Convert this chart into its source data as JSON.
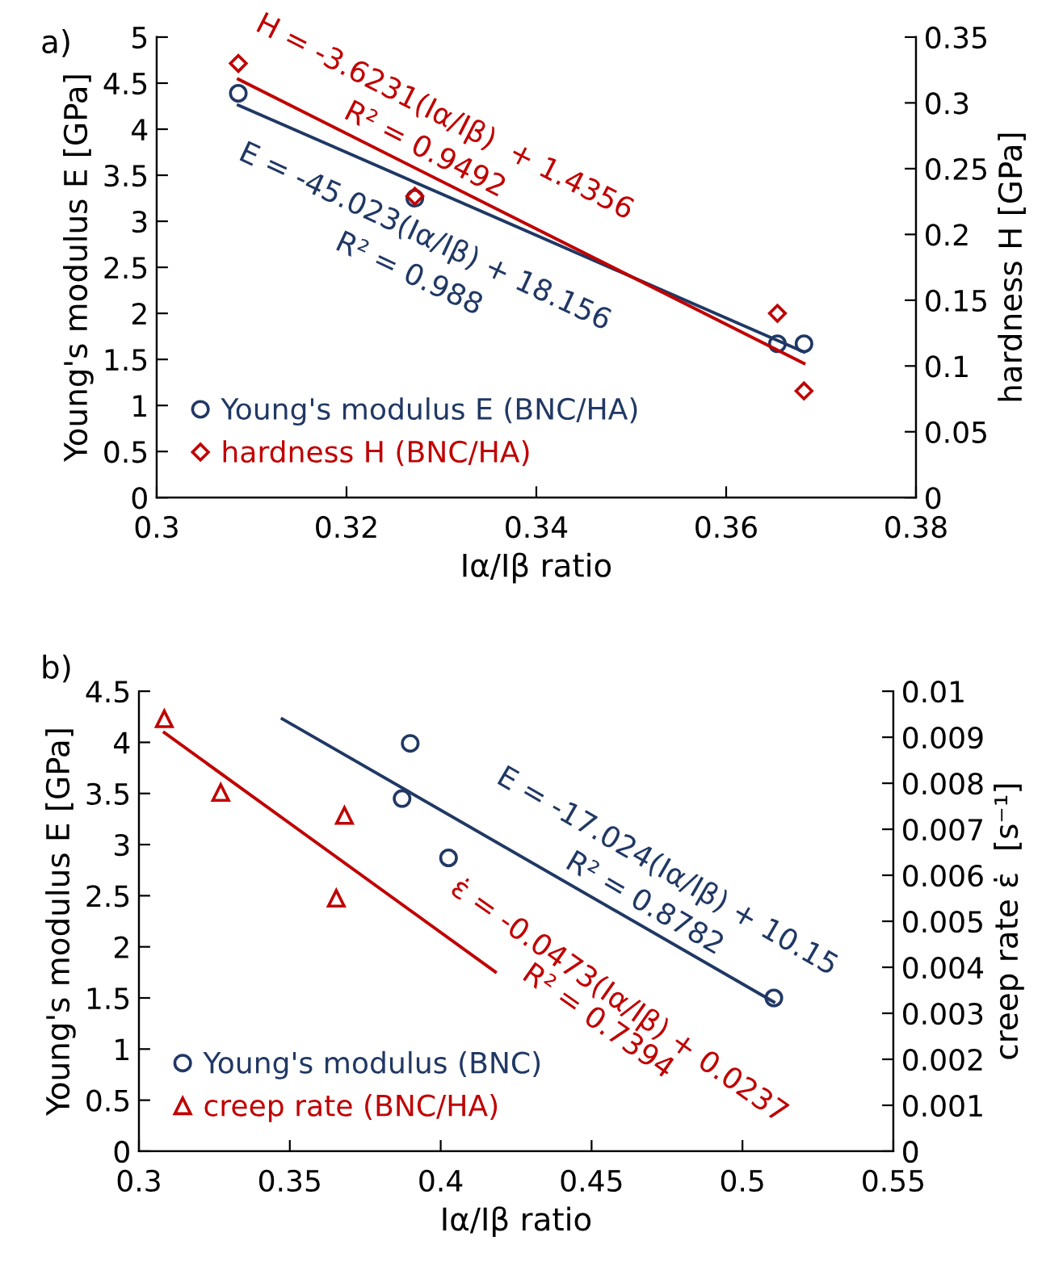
{
  "chart_data": [
    {
      "type": "scatter",
      "xlabel": "Iα/Iβ ratio",
      "ylabel": "Young's modulus E [GPa]",
      "y2label": "hardness H [GPa]",
      "xlim": [
        0.3,
        0.38
      ],
      "xticks": [
        0.3,
        0.32,
        0.34,
        0.36,
        0.38
      ],
      "ylim": [
        0,
        5
      ],
      "yticks": [
        0,
        0.5,
        1,
        1.5,
        2,
        2.5,
        3,
        3.5,
        4,
        4.5,
        5
      ],
      "y2lim": [
        0,
        0.35
      ],
      "y2ticks": [
        0,
        0.05,
        0.1,
        0.15,
        0.2,
        0.25,
        0.3,
        0.35
      ],
      "grid": false,
      "legend": "bottom left",
      "series": [
        {
          "name": "Young's modulus E (BNC/HA)",
          "marker": "circle",
          "color": "#203864",
          "x": [
            0.3086,
            0.3272,
            0.3654,
            0.3682
          ],
          "values": [
            4.39,
            3.25,
            1.67,
            1.67
          ]
        },
        {
          "name": "hardness H (BNC/HA)",
          "marker": "diamond",
          "color": "#c00000",
          "axis": "y2",
          "x": [
            0.3086,
            0.3272,
            0.3654,
            0.3682
          ],
          "values": [
            0.33,
            0.229,
            0.14,
            0.081
          ]
        },
        {
          "type": "line",
          "marker": "none",
          "line_style": "solid",
          "color": "#203864",
          "x": [
            0.3086,
            0.3682
          ],
          "values": [
            4.26,
            1.58
          ]
        },
        {
          "type": "line",
          "marker": "none",
          "line_style": "solid",
          "color": "#c00000",
          "axis": "y2",
          "x": [
            0.3086,
            0.3682
          ],
          "values": [
            0.318,
            0.102
          ]
        }
      ],
      "annotations": [
        "a)",
        "H = -3.6231(Iα/Iβ)  + 1.4356",
        "R² = 0.9492",
        "E = -45.023(Iα/Iβ) + 18.156",
        "R² = 0.988"
      ]
    },
    {
      "type": "scatter",
      "xlabel": "Iα/Iβ ratio",
      "ylabel": "Young's modulus E [GPa]",
      "y2label": "creep rate ε̇  [s⁻¹]",
      "xlim": [
        0.3,
        0.55
      ],
      "xticks": [
        0.3,
        0.35,
        0.4,
        0.45,
        0.5,
        0.55
      ],
      "ylim": [
        0,
        4.5
      ],
      "yticks": [
        0,
        0.5,
        1,
        1.5,
        2,
        2.5,
        3,
        3.5,
        4,
        4.5
      ],
      "y2lim": [
        0,
        0.01
      ],
      "y2ticks": [
        0,
        0.001,
        0.002,
        0.003,
        0.004,
        0.005,
        0.006,
        0.007,
        0.008,
        0.009,
        0.01
      ],
      "grid": false,
      "legend": "bottom left",
      "series": [
        {
          "name": "Young's modulus (BNC)",
          "marker": "circle",
          "color": "#203864",
          "x": [
            0.3899,
            0.3872,
            0.4026,
            0.5104
          ],
          "values": [
            3.99,
            3.45,
            2.87,
            1.5
          ]
        },
        {
          "name": "creep rate (BNC/HA)",
          "marker": "triangle",
          "color": "#c00000",
          "axis": "y2",
          "x": [
            0.3084,
            0.3271,
            0.3681,
            0.3654
          ],
          "values": [
            0.0094,
            0.0078,
            0.0073,
            0.0055
          ]
        },
        {
          "type": "line",
          "marker": "none",
          "line_style": "solid",
          "color": "#203864",
          "x": [
            0.3475,
            0.5104
          ],
          "values": [
            4.23,
            1.46
          ]
        },
        {
          "type": "line",
          "marker": "none",
          "line_style": "solid",
          "color": "#c00000",
          "axis": "y2",
          "x": [
            0.3084,
            0.4181
          ],
          "values": [
            0.0091,
            0.0039
          ]
        }
      ],
      "annotations": [
        "b)",
        "E = -17.024(Iα/Iβ) + 10.15",
        "R² = 0.8782",
        "ε̇ = -0.0473(Iα/Iβ) + 0.0237",
        "R² = 0.7394"
      ]
    }
  ]
}
